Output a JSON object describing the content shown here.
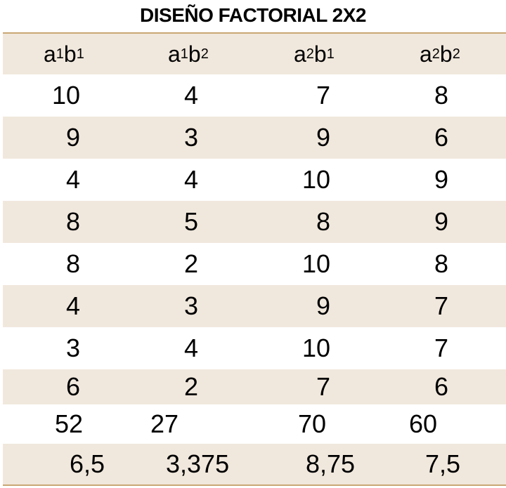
{
  "title": "DISEÑO FACTORIAL 2X2",
  "header": [
    {
      "base1": "a",
      "sub1": "1",
      "base2": "b",
      "sub2": "1"
    },
    {
      "base1": "a",
      "sub1": "1",
      "base2": "b",
      "sub2": "2"
    },
    {
      "base1": "a",
      "sub1": "2",
      "base2": "b",
      "sub2": "1"
    },
    {
      "base1": "a",
      "sub1": "2",
      "base2": "b",
      "sub2": "2"
    }
  ],
  "rows": [
    [
      "10",
      "4",
      "7",
      "8"
    ],
    [
      "9",
      "3",
      "9",
      "6"
    ],
    [
      "4",
      "4",
      "10",
      "9"
    ],
    [
      "8",
      "5",
      "8",
      "9"
    ],
    [
      "8",
      "2",
      "10",
      "8"
    ],
    [
      "4",
      "3",
      "9",
      "7"
    ],
    [
      "3",
      "4",
      "10",
      "7"
    ],
    [
      "6",
      "2",
      "7",
      "6"
    ]
  ],
  "totals": [
    "52",
    "27",
    "70",
    "60"
  ],
  "means": [
    "6,5",
    "3,375",
    "8,75",
    "7,5"
  ],
  "colors": {
    "shade": "#f1e8dd",
    "rule": "#c9a774"
  }
}
